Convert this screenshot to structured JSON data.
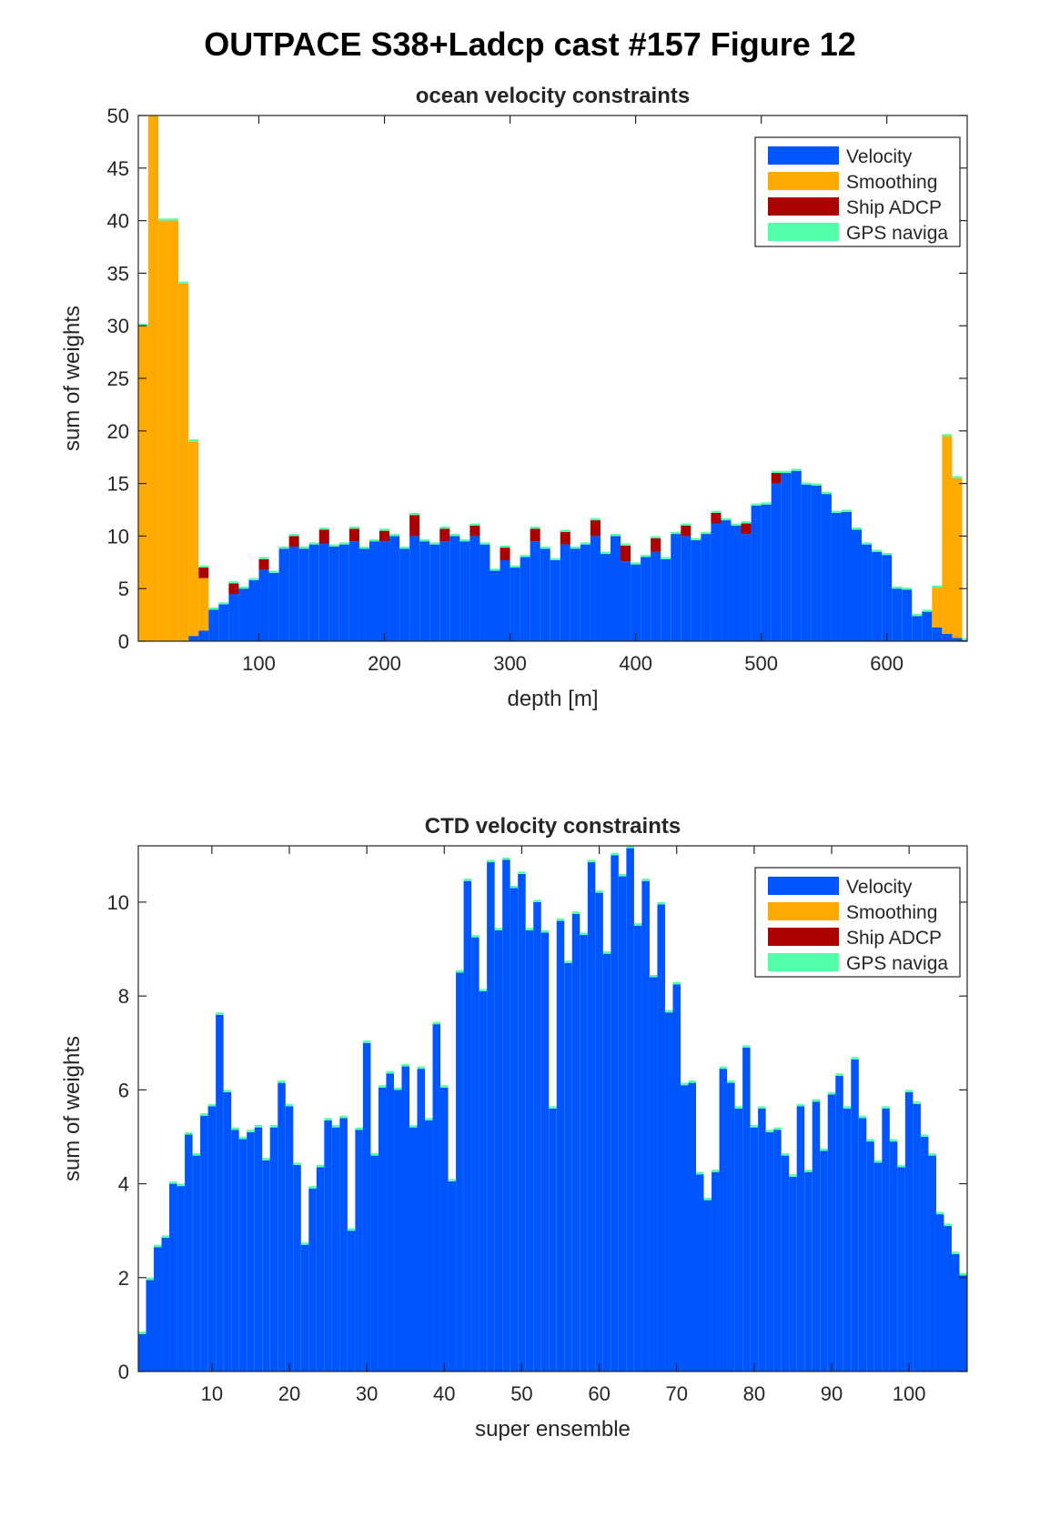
{
  "figure_title": "OUTPACE S38+Ladcp cast #157  Figure 12",
  "colors": {
    "velocity": "#0055ff",
    "smoothing": "#ffaa00",
    "ship_adcp": "#aa0000",
    "gps_navigation": "#55ffaa"
  },
  "chart_data": [
    {
      "type": "bar",
      "stacked": true,
      "title": "ocean velocity constraints",
      "xlabel": "depth [m]",
      "ylabel": "sum of weights",
      "xlim": [
        4,
        664
      ],
      "ylim": [
        0,
        50
      ],
      "xticks": [
        100,
        200,
        300,
        400,
        500,
        600
      ],
      "yticks": [
        0,
        5,
        10,
        15,
        20,
        25,
        30,
        35,
        40,
        45,
        50
      ],
      "grid": false,
      "legend_position": "top-right",
      "bin_width": 8,
      "x": [
        8,
        16,
        24,
        32,
        40,
        48,
        56,
        64,
        72,
        80,
        88,
        96,
        104,
        112,
        120,
        128,
        136,
        144,
        152,
        160,
        168,
        176,
        184,
        192,
        200,
        208,
        216,
        224,
        232,
        240,
        248,
        256,
        264,
        272,
        280,
        288,
        296,
        304,
        312,
        320,
        328,
        336,
        344,
        352,
        360,
        368,
        376,
        384,
        392,
        400,
        408,
        416,
        424,
        432,
        440,
        448,
        456,
        464,
        472,
        480,
        488,
        496,
        504,
        512,
        520,
        528,
        536,
        544,
        552,
        560,
        568,
        576,
        584,
        592,
        600,
        608,
        616,
        624,
        632,
        640,
        648,
        656,
        664
      ],
      "series": [
        {
          "name": "Velocity",
          "values": [
            0,
            0,
            0,
            0,
            0,
            0.5,
            1,
            3,
            3.5,
            4.5,
            5,
            5.8,
            6.8,
            6.5,
            8.8,
            9,
            8.8,
            9.2,
            9.3,
            9,
            9.2,
            9.5,
            8.8,
            9.5,
            9.5,
            10,
            8.8,
            10,
            9.5,
            9.2,
            9.5,
            10,
            9.5,
            10,
            9.2,
            6.7,
            7.7,
            7,
            8,
            9.5,
            8.8,
            7.7,
            9.2,
            8.8,
            9.2,
            10,
            8.3,
            10,
            7.6,
            7.3,
            8,
            8.5,
            7.8,
            10.2,
            10,
            9.6,
            10.2,
            11.2,
            11.5,
            11,
            10.2,
            12.9,
            13,
            15,
            16,
            16.2,
            14.9,
            14.8,
            14,
            12.2,
            12.3,
            10.6,
            9.2,
            8.5,
            8.2,
            5,
            4.9,
            2.4,
            2.8,
            1.3,
            0.7,
            0.3,
            0.1
          ]
        },
        {
          "name": "Smoothing",
          "values": [
            30,
            50,
            40,
            40,
            34,
            18.5,
            5,
            0,
            0,
            0,
            0,
            0,
            0,
            0,
            0,
            0,
            0,
            0,
            0,
            0,
            0,
            0,
            0,
            0,
            0,
            0,
            0,
            0,
            0,
            0,
            0,
            0,
            0,
            0,
            0,
            0,
            0,
            0,
            0,
            0,
            0,
            0,
            0,
            0,
            0,
            0,
            0,
            0,
            0,
            0,
            0,
            0,
            0,
            0,
            0,
            0,
            0,
            0,
            0,
            0,
            0,
            0,
            0,
            0,
            0,
            0,
            0,
            0,
            0,
            0,
            0,
            0,
            0,
            0,
            0,
            0,
            0,
            0,
            0,
            3.8,
            18.8,
            15.2,
            0
          ]
        },
        {
          "name": "Ship ADCP",
          "values": [
            0,
            0,
            0,
            0,
            0,
            0,
            1,
            0,
            0,
            1,
            0,
            0,
            1,
            0,
            0,
            1,
            0,
            0,
            1.3,
            0,
            0,
            1.2,
            0,
            0,
            1,
            0,
            0,
            2,
            0,
            0,
            1.2,
            0,
            0,
            1,
            0,
            0,
            1.2,
            0,
            0,
            1.2,
            0,
            0,
            1.2,
            0,
            0,
            1.5,
            0,
            0,
            1.5,
            0,
            0,
            1.3,
            0,
            0,
            1,
            0,
            0,
            1,
            0,
            0,
            1,
            0,
            0,
            1,
            0,
            0,
            0,
            0,
            0,
            0,
            0,
            0,
            0,
            0,
            0,
            0,
            0,
            0,
            0,
            0,
            0,
            0,
            0
          ]
        },
        {
          "name": "GPS naviga",
          "values": [
            0.2,
            0.2,
            0.2,
            0.2,
            0.2,
            0.2,
            0.2,
            0.2,
            0.2,
            0.2,
            0.2,
            0.2,
            0.2,
            0.2,
            0.2,
            0.2,
            0.2,
            0.2,
            0.2,
            0.2,
            0.2,
            0.2,
            0.2,
            0.2,
            0.2,
            0.2,
            0.2,
            0.2,
            0.2,
            0.2,
            0.2,
            0.2,
            0.2,
            0.2,
            0.2,
            0.2,
            0.2,
            0.2,
            0.2,
            0.2,
            0.2,
            0.2,
            0.2,
            0.2,
            0.2,
            0.2,
            0.2,
            0.2,
            0.2,
            0.2,
            0.2,
            0.2,
            0.2,
            0.2,
            0.2,
            0.2,
            0.2,
            0.2,
            0.2,
            0.2,
            0.2,
            0.2,
            0.2,
            0.2,
            0.2,
            0.2,
            0.2,
            0.2,
            0.2,
            0.2,
            0.2,
            0.2,
            0.2,
            0.2,
            0.2,
            0.2,
            0.2,
            0.2,
            0.2,
            0.2,
            0.2,
            0.2,
            0.2
          ]
        }
      ]
    },
    {
      "type": "bar",
      "stacked": true,
      "title": "CTD velocity constraints",
      "xlabel": "super ensemble",
      "ylabel": "sum of weights",
      "xlim": [
        0.5,
        107.5
      ],
      "ylim": [
        0,
        11.2
      ],
      "xticks": [
        10,
        20,
        30,
        40,
        50,
        60,
        70,
        80,
        90,
        100
      ],
      "yticks": [
        0,
        2,
        4,
        6,
        8,
        10
      ],
      "grid": false,
      "legend_position": "top-right",
      "bin_width": 1,
      "x_start": 1,
      "series": [
        {
          "name": "Velocity",
          "values": [
            0.8,
            1.95,
            2.65,
            2.85,
            4.0,
            3.95,
            5.05,
            4.6,
            5.45,
            5.65,
            7.6,
            5.95,
            5.15,
            4.95,
            5.1,
            5.2,
            4.5,
            5.2,
            6.15,
            5.65,
            4.4,
            2.7,
            3.9,
            4.35,
            5.35,
            5.2,
            5.4,
            3.0,
            5.15,
            7.0,
            4.6,
            6.05,
            6.35,
            6.0,
            6.5,
            5.2,
            6.45,
            5.35,
            7.4,
            6.05,
            4.05,
            8.5,
            10.45,
            9.25,
            8.1,
            10.85,
            9.4,
            10.9,
            10.3,
            10.6,
            9.4,
            10.0,
            9.35,
            5.6,
            9.6,
            8.7,
            9.75,
            9.3,
            10.85,
            10.2,
            8.9,
            11.0,
            10.55,
            11.15,
            9.5,
            10.45,
            8.4,
            9.95,
            7.65,
            8.25,
            6.1,
            6.15,
            4.2,
            3.65,
            4.25,
            6.45,
            6.15,
            5.6,
            6.9,
            5.2,
            5.6,
            5.1,
            5.15,
            4.6,
            4.15,
            5.65,
            4.25,
            5.75,
            4.7,
            5.9,
            6.3,
            5.6,
            6.65,
            5.4,
            4.9,
            4.45,
            5.6,
            4.9,
            4.35,
            5.95,
            5.7,
            5.0,
            4.6,
            3.35,
            3.1,
            2.5,
            2.05,
            0.9
          ]
        },
        {
          "name": "Smoothing",
          "values": []
        },
        {
          "name": "Ship ADCP",
          "values": []
        },
        {
          "name": "GPS naviga",
          "values": [
            0.05,
            0.05,
            0.05,
            0.05,
            0.05,
            0.05,
            0.05,
            0.05,
            0.05,
            0.05,
            0.05,
            0.05,
            0.05,
            0.05,
            0.05,
            0.05,
            0.05,
            0.05,
            0.05,
            0.05,
            0.05,
            0.05,
            0.05,
            0.05,
            0.05,
            0.05,
            0.05,
            0.05,
            0.05,
            0.05,
            0.05,
            0.05,
            0.05,
            0.05,
            0.05,
            0.05,
            0.05,
            0.05,
            0.05,
            0.05,
            0.05,
            0.05,
            0.05,
            0.05,
            0.05,
            0.05,
            0.05,
            0.05,
            0.05,
            0.05,
            0.05,
            0.05,
            0.05,
            0.05,
            0.05,
            0.05,
            0.05,
            0.05,
            0.05,
            0.05,
            0.05,
            0.05,
            0.05,
            0.05,
            0.05,
            0.05,
            0.05,
            0.05,
            0.05,
            0.05,
            0.05,
            0.05,
            0.05,
            0.05,
            0.05,
            0.05,
            0.05,
            0.05,
            0.05,
            0.05,
            0.05,
            0.05,
            0.05,
            0.05,
            0.05,
            0.05,
            0.05,
            0.05,
            0.05,
            0.05,
            0.05,
            0.05,
            0.05,
            0.05,
            0.05,
            0.05,
            0.05,
            0.05,
            0.05,
            0.05,
            0.05,
            0.05,
            0.05,
            0.05,
            0.05,
            0.05,
            0.05
          ]
        }
      ]
    }
  ]
}
